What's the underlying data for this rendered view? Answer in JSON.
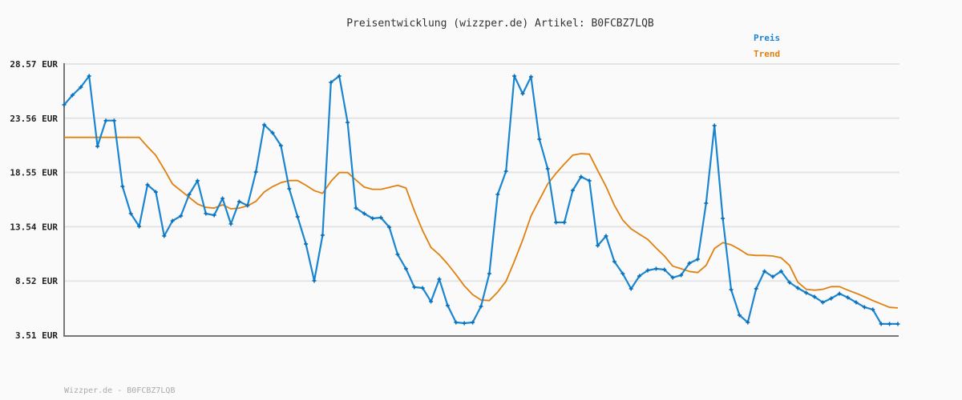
{
  "chart_data": {
    "type": "line",
    "title": "Preisentwicklung (wizzper.de) Artikel: B0FCBZ7LQB",
    "footer": "Wizzper.de - B0FCBZ7LQB",
    "xlabel": "",
    "ylabel": "",
    "y_ticks": [
      "28.57 EUR",
      "23.56 EUR",
      "18.55 EUR",
      "13.54 EUR",
      "8.52 EUR",
      "3.51 EUR"
    ],
    "y_tick_values": [
      28.57,
      23.56,
      18.55,
      13.54,
      8.52,
      3.51
    ],
    "ylim": [
      3.51,
      28.57
    ],
    "grid": true,
    "legend_position": "top-right",
    "series": [
      {
        "name": "Preis",
        "color": "#1a85d0",
        "markers": true,
        "values": [
          24.8,
          25.69,
          26.43,
          27.46,
          20.96,
          23.34,
          23.34,
          17.26,
          14.75,
          13.56,
          17.41,
          16.74,
          12.68,
          14.08,
          14.53,
          16.52,
          17.78,
          14.75,
          14.6,
          16.15,
          13.79,
          15.86,
          15.49,
          18.59,
          22.95,
          22.21,
          21.03,
          17.04,
          14.45,
          11.94,
          8.54,
          12.75,
          26.87,
          27.46,
          23.17,
          15.26,
          14.75,
          14.3,
          14.38,
          13.49,
          10.98,
          9.65,
          7.95,
          7.87,
          6.62,
          8.69,
          6.25,
          4.69,
          4.62,
          4.69,
          6.17,
          9.2,
          16.52,
          18.66,
          27.46,
          25.83,
          27.39,
          21.62,
          18.89,
          13.93,
          13.93,
          16.89,
          18.15,
          17.78,
          11.79,
          12.68,
          10.31,
          9.2,
          7.8,
          8.98,
          9.5,
          9.65,
          9.57,
          8.83,
          9.06,
          10.16,
          10.53,
          15.71,
          22.88,
          14.3,
          7.72,
          5.36,
          4.69,
          7.8,
          9.42,
          8.91,
          9.42,
          8.39,
          7.87,
          7.43,
          7.06,
          6.54,
          6.91,
          7.35,
          6.99,
          6.54,
          6.1,
          5.88,
          4.55,
          4.55,
          4.55
        ]
      },
      {
        "name": "Trend",
        "color": "#e0800f",
        "markers": false,
        "values": [
          21.79,
          21.79,
          21.79,
          21.79,
          21.79,
          21.79,
          21.79,
          21.79,
          21.79,
          21.79,
          20.93,
          20.12,
          18.84,
          17.48,
          16.87,
          16.25,
          15.63,
          15.32,
          15.26,
          15.56,
          15.19,
          15.26,
          15.46,
          15.88,
          16.74,
          17.24,
          17.61,
          17.8,
          17.8,
          17.36,
          16.87,
          16.62,
          17.73,
          18.54,
          18.54,
          17.85,
          17.19,
          16.99,
          16.99,
          17.16,
          17.36,
          17.11,
          15.02,
          13.17,
          11.62,
          10.95,
          10.09,
          9.11,
          8.07,
          7.26,
          6.76,
          6.71,
          7.5,
          8.49,
          10.33,
          12.31,
          14.53,
          16.01,
          17.48,
          18.47,
          19.33,
          20.14,
          20.29,
          20.24,
          18.72,
          17.24,
          15.51,
          14.15,
          13.34,
          12.85,
          12.36,
          11.57,
          10.83,
          9.89,
          9.65,
          9.4,
          9.3,
          9.96,
          11.52,
          12.06,
          11.86,
          11.44,
          10.95,
          10.88,
          10.88,
          10.83,
          10.66,
          9.96,
          8.41,
          7.75,
          7.67,
          7.75,
          8.0,
          8.0,
          7.67,
          7.38,
          7.06,
          6.71,
          6.4,
          6.08,
          6.03
        ]
      }
    ]
  }
}
